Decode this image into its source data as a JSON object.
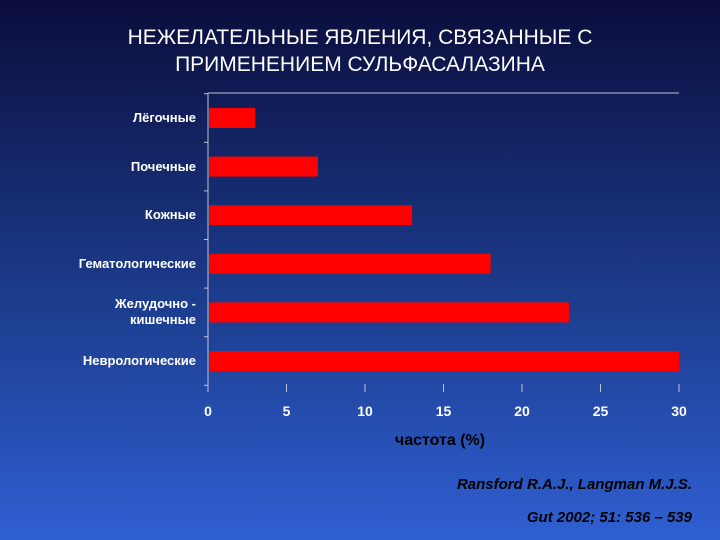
{
  "chart_data": {
    "type": "bar",
    "orientation": "horizontal",
    "title_lines": [
      "НЕЖЕЛАТЕЛЬНЫЕ ЯВЛЕНИЯ, СВЯЗАННЫЕ С",
      "ПРИМЕНЕНИЕМ СУЛЬФАСАЛАЗИНА"
    ],
    "categories": [
      [
        "Лёгочные"
      ],
      [
        "Почечные"
      ],
      [
        "Кожные"
      ],
      [
        "Гематологические"
      ],
      [
        "Желудочно -",
        "кишечные"
      ],
      [
        "Неврологические"
      ]
    ],
    "values": [
      3,
      7,
      13,
      18,
      23,
      30
    ],
    "xlabel": "частота (%)",
    "xlim": [
      0,
      30
    ],
    "xticks": [
      "0",
      "5",
      "10",
      "15",
      "20",
      "25",
      "30"
    ],
    "bar_color": "#ff0000",
    "grid": false
  },
  "citation": {
    "line1": "Ransford R.A.J., Langman M.J.S.",
    "line2": "Gut 2002; 51: 536 – 539"
  }
}
